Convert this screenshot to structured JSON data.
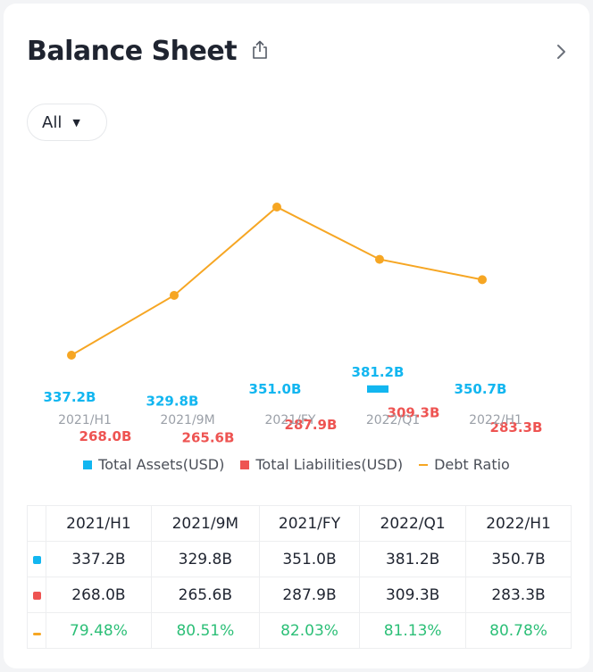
{
  "header": {
    "title": "Balance Sheet",
    "share_icon": "share-icon",
    "more_icon": "chevron-right-icon"
  },
  "filter": {
    "selected": "All"
  },
  "colors": {
    "assets": "#12b6f0",
    "liabilities": "#ee5452",
    "ratio": "#f6a623",
    "positive": "#2cbf77"
  },
  "chart_data": {
    "type": "bar",
    "categories": [
      "2021/H1",
      "2021/9M",
      "2021/FY",
      "2022/Q1",
      "2022/H1"
    ],
    "series": [
      {
        "name": "Total Assets(USD)",
        "type": "bar",
        "values": [
          337.2,
          329.8,
          351.0,
          381.2,
          350.7
        ],
        "labels": [
          "337.2B",
          "329.8B",
          "351.0B",
          "381.2B",
          "350.7B"
        ]
      },
      {
        "name": "Total Liabilities(USD)",
        "type": "bar",
        "values": [
          268.0,
          265.6,
          287.9,
          309.3,
          283.3
        ],
        "labels": [
          "268.0B",
          "265.6B",
          "287.9B",
          "309.3B",
          "283.3B"
        ]
      },
      {
        "name": "Debt Ratio",
        "type": "line",
        "values": [
          79.48,
          80.51,
          82.03,
          81.13,
          80.78
        ]
      }
    ],
    "legend_position": "bottom",
    "grid": false
  },
  "table": {
    "headers": [
      "2021/H1",
      "2021/9M",
      "2021/FY",
      "2022/Q1",
      "2022/H1"
    ],
    "rows": [
      {
        "marker": "assets",
        "cells": [
          "337.2B",
          "329.8B",
          "351.0B",
          "381.2B",
          "350.7B"
        ]
      },
      {
        "marker": "liabilities",
        "cells": [
          "268.0B",
          "265.6B",
          "287.9B",
          "309.3B",
          "283.3B"
        ]
      },
      {
        "marker": "ratio",
        "cells": [
          "79.48%",
          "80.51%",
          "82.03%",
          "81.13%",
          "80.78%"
        ]
      }
    ]
  }
}
